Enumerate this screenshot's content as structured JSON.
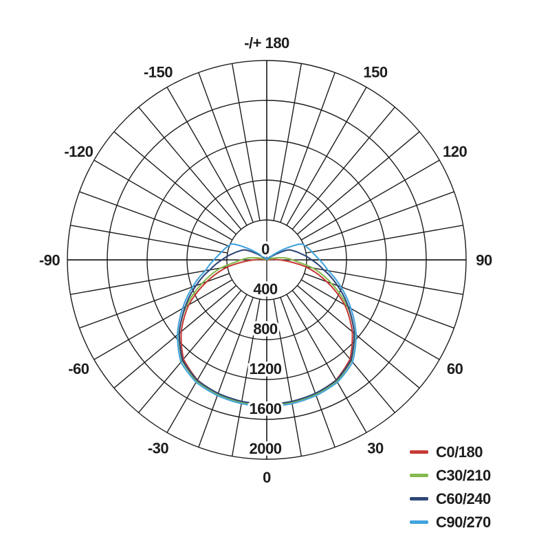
{
  "chart_data": {
    "type": "line",
    "subtype": "polar-photometric-intensity-distribution",
    "title": "",
    "grid": {
      "on": true,
      "ring_values": [
        400,
        800,
        1200,
        1600,
        2000
      ],
      "radial_max": 2000,
      "radial_step": 400,
      "spoke_step_deg": 10,
      "grid_color": "#1b1b1b"
    },
    "radial_tick_labels": [
      "0",
      "400",
      "800",
      "1200",
      "1600",
      "2000"
    ],
    "angle_labels": [
      {
        "text": "-/+ 180",
        "deg": 180
      },
      {
        "text": "150",
        "deg": 150
      },
      {
        "text": "120",
        "deg": 120
      },
      {
        "text": "90",
        "deg": 90
      },
      {
        "text": "60",
        "deg": 60
      },
      {
        "text": "30",
        "deg": 30
      },
      {
        "text": "0",
        "deg": 0
      },
      {
        "text": "-30",
        "deg": -30
      },
      {
        "text": "-60",
        "deg": -60
      },
      {
        "text": "-90",
        "deg": -90
      },
      {
        "text": "-120",
        "deg": -120
      },
      {
        "text": "-150",
        "deg": -150
      }
    ],
    "angles_deg": [
      0,
      10,
      20,
      30,
      40,
      50,
      60,
      70,
      80,
      85,
      90,
      95,
      100,
      105,
      110,
      115,
      120,
      125,
      130,
      140,
      150,
      160,
      170,
      180
    ],
    "symmetric": true,
    "series": [
      {
        "name": "C0/180",
        "color": "#c63b35",
        "values": [
          1455,
          1448,
          1428,
          1392,
          1300,
          1120,
          905,
          640,
          395,
          240,
          130,
          60,
          25,
          12,
          8,
          6,
          5,
          4,
          4,
          3,
          3,
          2,
          2,
          0
        ]
      },
      {
        "name": "C30/210",
        "color": "#84b94e",
        "values": [
          1462,
          1455,
          1438,
          1405,
          1320,
          1150,
          935,
          690,
          470,
          330,
          255,
          200,
          125,
          60,
          30,
          18,
          12,
          8,
          6,
          5,
          4,
          3,
          2,
          0
        ]
      },
      {
        "name": "C60/240",
        "color": "#2e4777",
        "values": [
          1448,
          1442,
          1425,
          1395,
          1315,
          1145,
          945,
          755,
          580,
          515,
          450,
          400,
          350,
          310,
          275,
          240,
          140,
          60,
          30,
          14,
          8,
          5,
          3,
          0
        ]
      },
      {
        "name": "C90/270",
        "color": "#41a3dd",
        "values": [
          1470,
          1464,
          1448,
          1418,
          1340,
          1170,
          975,
          790,
          625,
          575,
          530,
          490,
          460,
          435,
          410,
          385,
          250,
          130,
          60,
          25,
          14,
          8,
          5,
          0
        ]
      }
    ],
    "legend_position": "bottom-right"
  }
}
